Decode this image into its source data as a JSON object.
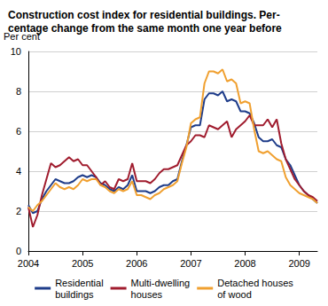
{
  "chart_data": {
    "type": "line",
    "title": "Construction cost index for residential buildings. Per-\ncentage change from the same month one year before",
    "y_label": "Per cent",
    "categories": [
      "2004",
      null,
      null,
      null,
      null,
      null,
      null,
      null,
      null,
      null,
      null,
      null,
      "2005",
      null,
      null,
      null,
      null,
      null,
      null,
      null,
      null,
      null,
      null,
      null,
      "2006",
      null,
      null,
      null,
      null,
      null,
      null,
      null,
      null,
      null,
      null,
      null,
      "2007",
      null,
      null,
      null,
      null,
      null,
      null,
      null,
      null,
      null,
      null,
      null,
      "2008",
      null,
      null,
      null,
      null,
      null,
      null,
      null,
      null,
      null,
      null,
      null,
      "2009",
      null,
      null,
      null,
      null
    ],
    "series": [
      {
        "name": "Residential\nbuildings",
        "color": "#1f3d8a",
        "values": [
          2.3,
          1.9,
          2.0,
          2.6,
          3.0,
          3.3,
          3.6,
          3.5,
          3.4,
          3.4,
          3.5,
          3.7,
          3.8,
          3.7,
          3.8,
          3.7,
          3.4,
          3.3,
          3.1,
          3.0,
          3.2,
          3.1,
          3.3,
          3.8,
          3.0,
          3.0,
          3.0,
          2.9,
          3.0,
          3.2,
          3.3,
          3.3,
          3.5,
          3.6,
          4.5,
          5.3,
          6.2,
          6.3,
          6.3,
          7.6,
          7.9,
          7.9,
          7.8,
          8.0,
          7.5,
          7.6,
          7.5,
          7.0,
          7.0,
          6.9,
          6.4,
          5.7,
          5.5,
          5.5,
          5.6,
          5.3,
          5.2,
          4.6,
          4.3,
          3.8,
          3.3,
          3.0,
          2.8,
          2.6,
          2.4
        ]
      },
      {
        "name": "Multi-dwelling\nhouses",
        "color": "#a01c2e",
        "values": [
          2.2,
          1.2,
          1.8,
          2.8,
          3.6,
          4.4,
          4.2,
          4.3,
          4.5,
          4.7,
          4.5,
          4.6,
          4.3,
          4.3,
          4.0,
          3.7,
          3.3,
          3.5,
          3.2,
          3.1,
          3.6,
          3.5,
          3.6,
          4.4,
          3.5,
          3.5,
          3.5,
          3.4,
          3.6,
          3.9,
          4.1,
          4.1,
          4.2,
          4.3,
          4.8,
          5.3,
          5.5,
          5.8,
          5.8,
          5.7,
          6.3,
          6.2,
          6.1,
          6.3,
          6.5,
          5.7,
          6.1,
          6.3,
          6.5,
          6.8,
          6.3,
          6.3,
          6.3,
          6.6,
          6.2,
          6.6,
          5.4,
          4.6,
          4.1,
          3.6,
          3.3,
          3.0,
          2.8,
          2.7,
          2.5
        ]
      },
      {
        "name": "Detached houses\nof wood",
        "color": "#f0a030",
        "values": [
          2.2,
          2.0,
          2.3,
          2.5,
          2.8,
          3.1,
          3.4,
          3.2,
          3.1,
          3.2,
          3.1,
          3.3,
          3.6,
          3.5,
          3.6,
          3.6,
          3.3,
          3.2,
          3.0,
          2.9,
          3.1,
          3.0,
          3.1,
          3.5,
          2.8,
          2.8,
          2.7,
          2.6,
          2.8,
          2.9,
          3.1,
          3.2,
          3.3,
          3.5,
          4.4,
          5.2,
          6.4,
          6.6,
          6.7,
          8.4,
          9.0,
          9.0,
          8.9,
          9.1,
          8.5,
          8.6,
          8.4,
          7.4,
          7.5,
          7.4,
          6.1,
          5.0,
          4.9,
          5.0,
          4.8,
          4.6,
          4.5,
          3.7,
          3.3,
          3.1,
          2.9,
          2.8,
          2.7,
          2.6,
          2.4
        ]
      }
    ],
    "ylim": [
      0,
      10
    ],
    "yticks": [
      0,
      2,
      4,
      6,
      8,
      10
    ],
    "grid": true,
    "legend": "bottom"
  }
}
